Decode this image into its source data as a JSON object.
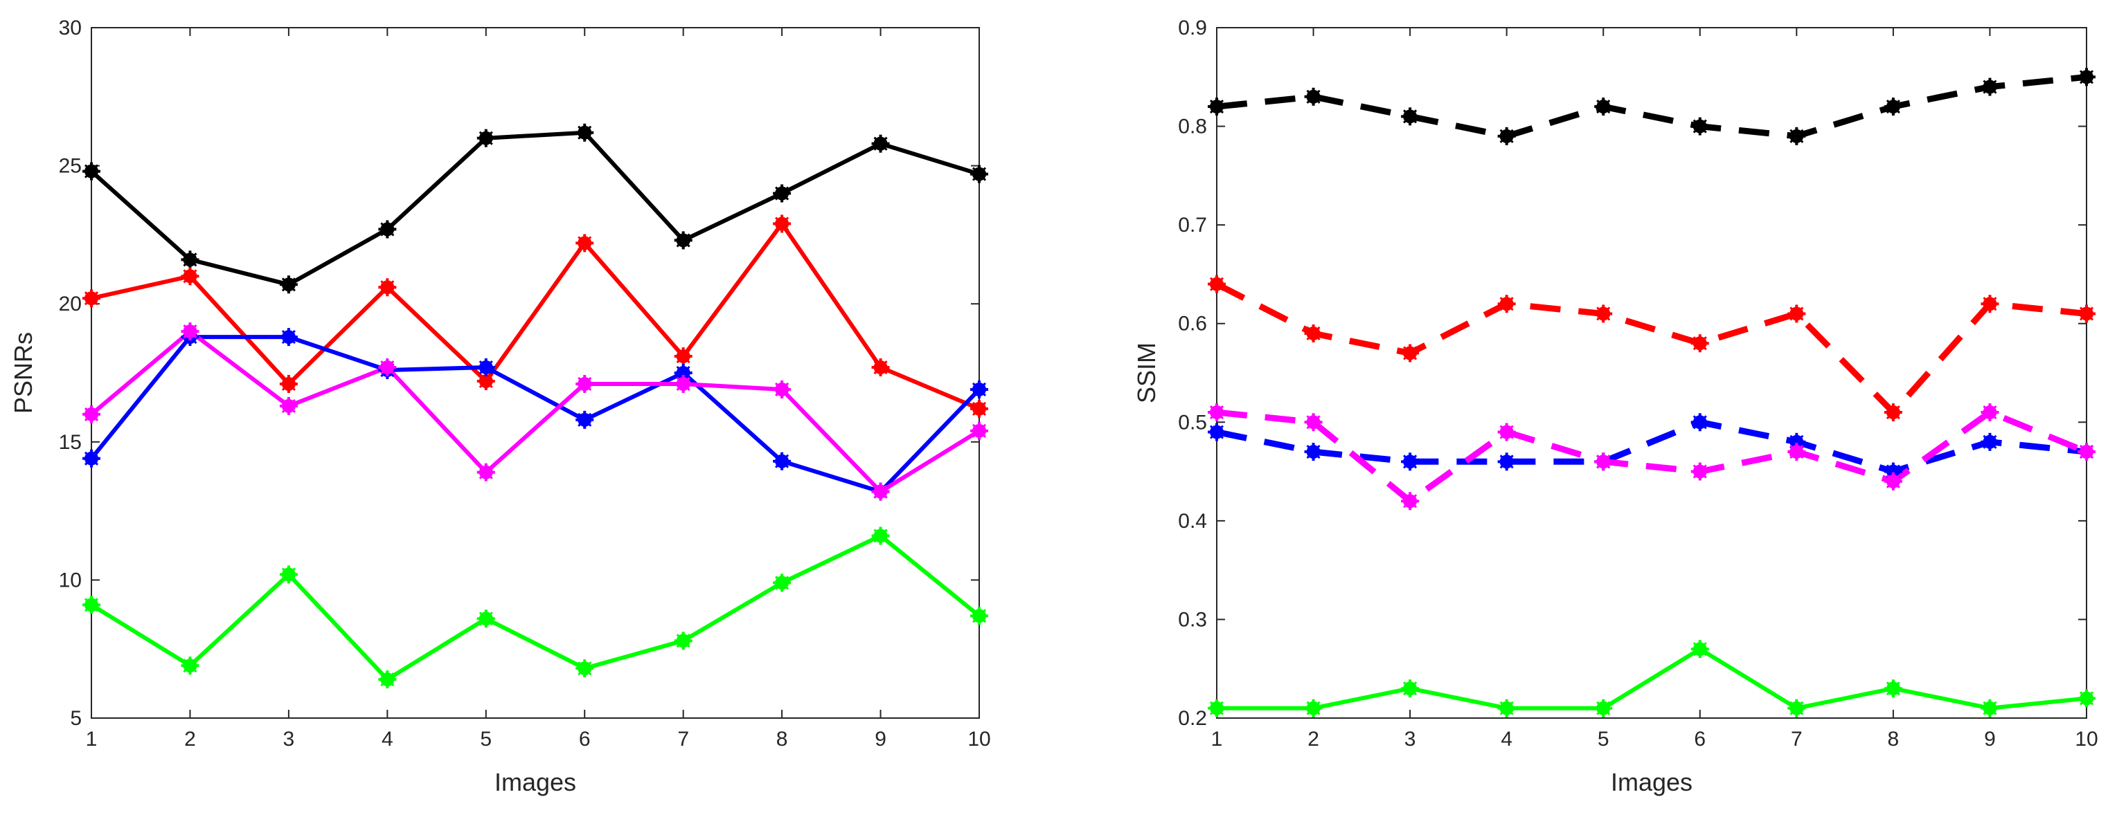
{
  "chart_data": [
    {
      "type": "line",
      "title": "",
      "xlabel": "Images",
      "ylabel": "PSNRs",
      "xlim": [
        1,
        10
      ],
      "ylim": [
        5,
        30
      ],
      "xticks": [
        "1",
        "2",
        "3",
        "4",
        "5",
        "6",
        "7",
        "8",
        "9",
        "10"
      ],
      "yticks": [
        "5",
        "10",
        "15",
        "20",
        "25",
        "30"
      ],
      "x": [
        1,
        2,
        3,
        4,
        5,
        6,
        7,
        8,
        9,
        10
      ],
      "grid": false,
      "line_style": "solid",
      "series": [
        {
          "name": "black",
          "color": "#000000",
          "values": [
            24.8,
            21.6,
            20.7,
            22.7,
            26.0,
            26.2,
            22.3,
            24.0,
            25.8,
            24.7
          ]
        },
        {
          "name": "red",
          "color": "#ff0000",
          "values": [
            20.2,
            21.0,
            17.1,
            20.6,
            17.2,
            22.2,
            18.1,
            22.9,
            17.7,
            16.2
          ]
        },
        {
          "name": "blue",
          "color": "#0000ff",
          "values": [
            14.4,
            18.8,
            18.8,
            17.6,
            17.7,
            15.8,
            17.5,
            14.3,
            13.2,
            16.9
          ]
        },
        {
          "name": "magenta",
          "color": "#ff00ff",
          "values": [
            16.0,
            19.0,
            16.3,
            17.7,
            13.9,
            17.1,
            17.1,
            16.9,
            13.2,
            15.4
          ]
        },
        {
          "name": "green",
          "color": "#00ff00",
          "values": [
            9.1,
            6.9,
            10.2,
            6.4,
            8.6,
            6.8,
            7.8,
            9.9,
            11.6,
            8.7
          ]
        }
      ]
    },
    {
      "type": "line",
      "title": "",
      "xlabel": "Images",
      "ylabel": "SSIM",
      "xlim": [
        1,
        10
      ],
      "ylim": [
        0.2,
        0.9
      ],
      "xticks": [
        "1",
        "2",
        "3",
        "4",
        "5",
        "6",
        "7",
        "8",
        "9",
        "10"
      ],
      "yticks": [
        "0.2",
        "0.3",
        "0.4",
        "0.5",
        "0.6",
        "0.7",
        "0.8",
        "0.9"
      ],
      "x": [
        1,
        2,
        3,
        4,
        5,
        6,
        7,
        8,
        9,
        10
      ],
      "grid": false,
      "series": [
        {
          "name": "black",
          "color": "#000000",
          "line_style": "dashed",
          "values": [
            0.82,
            0.83,
            0.81,
            0.79,
            0.82,
            0.8,
            0.79,
            0.82,
            0.84,
            0.85
          ]
        },
        {
          "name": "red",
          "color": "#ff0000",
          "line_style": "dashed",
          "values": [
            0.64,
            0.59,
            0.57,
            0.62,
            0.61,
            0.58,
            0.61,
            0.51,
            0.62,
            0.61
          ]
        },
        {
          "name": "blue",
          "color": "#0000ff",
          "line_style": "dashed",
          "values": [
            0.49,
            0.47,
            0.46,
            0.46,
            0.46,
            0.5,
            0.48,
            0.45,
            0.48,
            0.47
          ]
        },
        {
          "name": "magenta",
          "color": "#ff00ff",
          "line_style": "dashed",
          "values": [
            0.51,
            0.5,
            0.42,
            0.49,
            0.46,
            0.45,
            0.47,
            0.44,
            0.51,
            0.47
          ]
        },
        {
          "name": "green",
          "color": "#00ff00",
          "line_style": "solid",
          "values": [
            0.21,
            0.21,
            0.23,
            0.21,
            0.21,
            0.27,
            0.21,
            0.23,
            0.21,
            0.22
          ]
        }
      ]
    }
  ]
}
